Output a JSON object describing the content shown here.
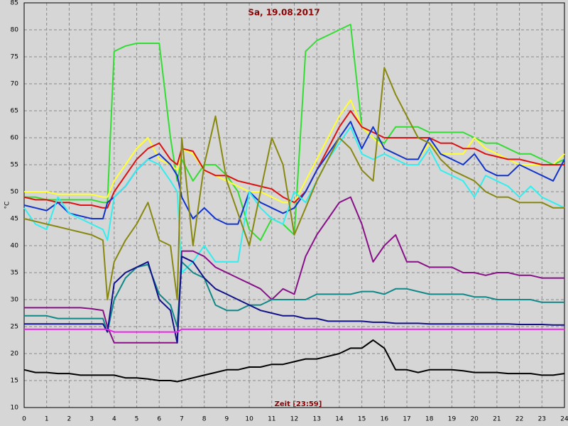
{
  "chart_data": {
    "type": "line",
    "title": "Sa, 19.08.2017",
    "x_label": "Zeit [23:59]",
    "y_label": "°C",
    "x": [
      0,
      0.5,
      1,
      1.5,
      2,
      2.5,
      3,
      3.5,
      3.7,
      4,
      4.5,
      5,
      5.5,
      6,
      6.5,
      6.8,
      7,
      7.5,
      8,
      8.5,
      9,
      9.5,
      10,
      10.5,
      11,
      11.5,
      12,
      12.5,
      13,
      13.5,
      14,
      14.5,
      15,
      15.5,
      16,
      16.5,
      17,
      17.5,
      18,
      18.5,
      19,
      19.5,
      20,
      20.5,
      21,
      21.5,
      22,
      22.5,
      23,
      23.5,
      24
    ],
    "series": [
      {
        "color": "#33dd33",
        "values": [
          49,
          49,
          48.5,
          48.5,
          48.5,
          48.5,
          48.5,
          48,
          48,
          76,
          77,
          77.5,
          77.5,
          77.5,
          60,
          52,
          56,
          52,
          55,
          55,
          53,
          50,
          43,
          41,
          45,
          44,
          42,
          76,
          78,
          79,
          80,
          81,
          62,
          60,
          59,
          62,
          62,
          62,
          61,
          61,
          61,
          61,
          60,
          59,
          59,
          58,
          57,
          57,
          56,
          55,
          56
        ]
      },
      {
        "color": "#ffff33",
        "values": [
          50,
          50,
          50,
          49.5,
          49.5,
          49.5,
          49.5,
          49,
          49,
          52,
          55,
          58,
          60,
          56,
          55,
          54,
          58,
          57,
          54,
          53,
          52,
          51,
          50,
          50,
          49,
          48,
          48,
          52,
          56,
          60,
          64,
          67,
          62,
          60,
          58,
          57,
          56,
          56,
          59,
          57,
          57,
          57,
          60,
          58,
          57,
          56,
          55,
          55,
          55,
          55,
          57
        ]
      },
      {
        "color": "#dd1111",
        "values": [
          49,
          48.5,
          48.5,
          48,
          48,
          47.5,
          47.5,
          47,
          47,
          50,
          53,
          56,
          58,
          59,
          56,
          55,
          58,
          57.5,
          54,
          53,
          53,
          52,
          51.5,
          51,
          50.5,
          49,
          48,
          50,
          54,
          58,
          62,
          65,
          62,
          61,
          60,
          60,
          60,
          60,
          60,
          59,
          59,
          58,
          58,
          57,
          56.5,
          56,
          56,
          55.5,
          55,
          55,
          55
        ]
      },
      {
        "color": "#1133cc",
        "values": [
          47.5,
          47,
          46.5,
          48,
          46,
          45.5,
          45,
          45,
          48,
          49,
          51,
          54,
          56,
          57,
          55,
          53,
          49,
          45,
          47,
          45,
          44,
          44,
          50,
          48,
          47,
          46,
          47,
          50,
          54,
          57,
          60,
          63,
          58,
          62,
          58,
          57,
          56,
          56,
          60,
          57,
          56,
          55,
          57,
          54,
          53,
          53,
          55,
          54,
          53,
          52,
          56
        ]
      },
      {
        "color": "#33eeee",
        "values": [
          47,
          44,
          43,
          49,
          46,
          45,
          44,
          43,
          41,
          49,
          51,
          54,
          56,
          55,
          52,
          50,
          35,
          37,
          40,
          37,
          37,
          37,
          50,
          47,
          45,
          44,
          50,
          48,
          52,
          56,
          59,
          62,
          57,
          56,
          57,
          56,
          55,
          55,
          58,
          54,
          53,
          52,
          49,
          53,
          52,
          51,
          49,
          51,
          49,
          48,
          47
        ]
      },
      {
        "color": "#888811",
        "values": [
          45,
          44.5,
          44,
          43.5,
          43,
          42.5,
          42,
          41,
          30,
          37,
          41,
          44,
          48,
          41,
          40,
          30,
          60,
          40,
          55,
          64,
          52,
          46,
          40,
          50,
          60,
          55,
          42,
          47,
          52,
          56,
          60,
          58,
          54,
          52,
          73,
          68,
          64,
          60,
          59,
          56,
          54,
          53,
          52,
          50,
          49,
          49,
          48,
          48,
          48,
          47,
          47
        ]
      },
      {
        "color": "#881188",
        "values": [
          28.5,
          28.5,
          28.5,
          28.5,
          28.5,
          28.5,
          28.3,
          28,
          25,
          22,
          22,
          22,
          22,
          22,
          22,
          22,
          39,
          39,
          38,
          36,
          35,
          34,
          33,
          32,
          30,
          32,
          31,
          38,
          42,
          45,
          48,
          49,
          44,
          37,
          40,
          42,
          37,
          37,
          36,
          36,
          36,
          35,
          35,
          34.5,
          35,
          35,
          34.5,
          34.5,
          34,
          34,
          34
        ]
      },
      {
        "color": "#118888",
        "values": [
          27,
          27,
          27,
          26.5,
          26.5,
          26.5,
          26.5,
          26.5,
          24,
          30,
          34,
          36,
          36.5,
          31,
          29,
          25,
          37,
          35,
          34,
          29,
          28,
          28,
          29,
          29,
          30,
          30,
          30,
          30,
          31,
          31,
          31,
          31,
          31.5,
          31.5,
          31,
          32,
          32,
          31.5,
          31,
          31,
          31,
          31,
          30.5,
          30.5,
          30,
          30,
          30,
          30,
          29.5,
          29.5,
          29.5
        ]
      },
      {
        "color": "#111188",
        "values": [
          25.5,
          25.5,
          25.5,
          25.5,
          25.5,
          25.5,
          25.5,
          25.5,
          24,
          33,
          35,
          36,
          37,
          30,
          28,
          22,
          38,
          37,
          34,
          32,
          31,
          30,
          29,
          28,
          27.5,
          27,
          27,
          26.5,
          26.5,
          26,
          26,
          26,
          26,
          25.8,
          25.8,
          25.6,
          25.6,
          25.6,
          25.5,
          25.5,
          25.5,
          25.5,
          25.5,
          25.5,
          25.5,
          25.5,
          25.4,
          25.4,
          25.4,
          25.3,
          25.3
        ]
      },
      {
        "color": "#ee22ee",
        "values": [
          24.5,
          24.5,
          24.5,
          24.5,
          24.5,
          24.5,
          24.5,
          24.5,
          24.5,
          24,
          24,
          24,
          24,
          24,
          24,
          24,
          24.5,
          24.5,
          24.5,
          24.5,
          24.5,
          24.5,
          24.5,
          24.5,
          24.5,
          24.5,
          24.5,
          24.5,
          24.5,
          24.5,
          24.5,
          24.5,
          24.5,
          24.5,
          24.5,
          24.5,
          24.5,
          24.5,
          24.5,
          24.5,
          24.5,
          24.5,
          24.5,
          24.5,
          24.5,
          24.5,
          24.5,
          24.5,
          24.5,
          24.5,
          24.5
        ]
      },
      {
        "color": "#000000",
        "values": [
          17,
          16.5,
          16.5,
          16.3,
          16.3,
          16,
          16,
          16,
          16,
          16,
          15.5,
          15.5,
          15.3,
          15,
          15,
          14.8,
          15,
          15.5,
          16,
          16.5,
          17,
          17,
          17.5,
          17.5,
          18,
          18,
          18.5,
          19,
          19,
          19.5,
          20,
          21,
          21,
          22.5,
          21,
          17,
          17,
          16.5,
          17,
          17,
          17,
          16.8,
          16.5,
          16.5,
          16.5,
          16.3,
          16.3,
          16.3,
          16,
          16,
          16.3
        ]
      }
    ],
    "xlim": [
      0,
      24
    ],
    "xticks": [
      0,
      1,
      2,
      3,
      4,
      5,
      6,
      7,
      8,
      9,
      10,
      11,
      12,
      13,
      14,
      15,
      16,
      17,
      18,
      19,
      20,
      21,
      22,
      23,
      24
    ],
    "ylim": [
      10,
      85
    ],
    "yticks": [
      10,
      15,
      20,
      25,
      30,
      35,
      40,
      45,
      50,
      55,
      60,
      65,
      70,
      75,
      80,
      85
    ],
    "grid": true
  }
}
